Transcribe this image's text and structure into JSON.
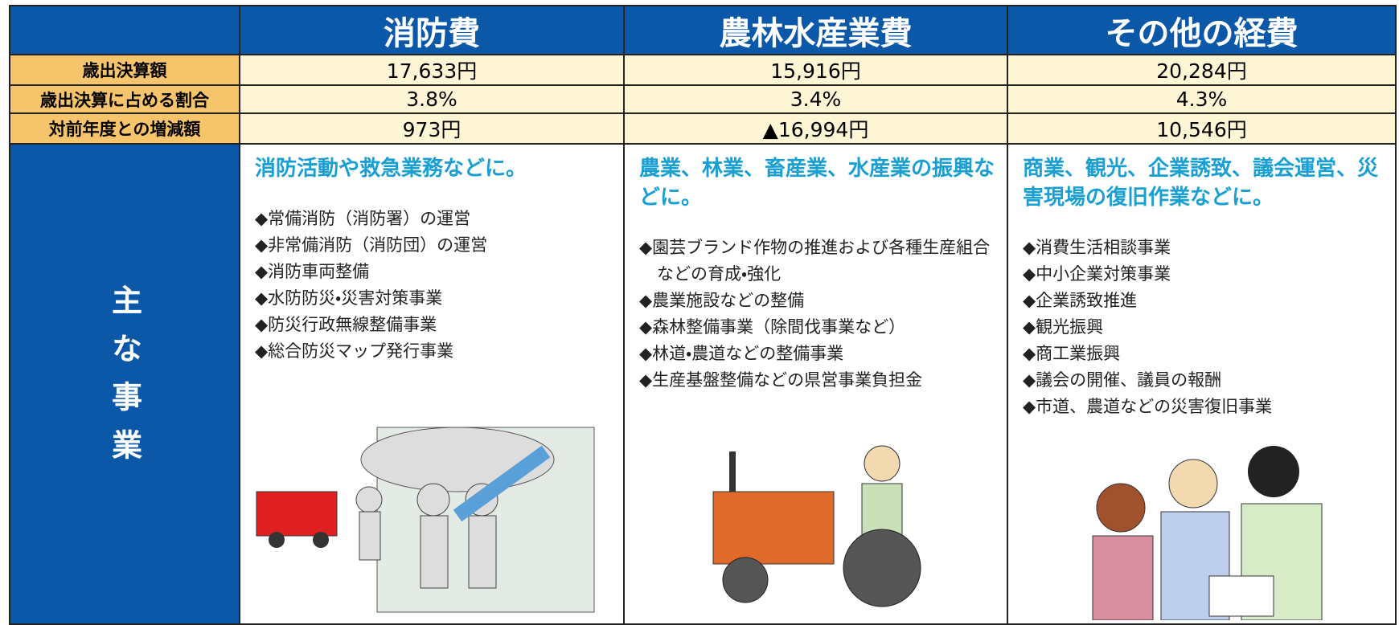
{
  "header": {
    "columns": [
      "消防費",
      "農林水産業費",
      "その他の経費"
    ]
  },
  "table": {
    "rows": [
      {
        "label": "歳出決算額",
        "values": [
          "17,633円",
          "15,916円",
          "20,284円"
        ]
      },
      {
        "label": "歳出決算に占める割合",
        "values": [
          "3.8%",
          "3.4%",
          "4.3%"
        ]
      },
      {
        "label": "対前年度との増減額",
        "values": [
          "973円",
          "▲16,994円",
          "10,546円"
        ]
      }
    ]
  },
  "main_projects": {
    "label": "主な事業",
    "columns": [
      {
        "headline": "消防活動や救急業務などに。",
        "items": [
          "◆常備消防（消防署）の運営",
          "◆非常備消防（消防団）の運営",
          "◆消防車両整備",
          "◆水防防災・災害対策事業",
          "◆防災行政無線整備事業",
          "◆総合防災マップ発行事業"
        ]
      },
      {
        "headline": "農業、林業、畜産業、水産業の振興などに。",
        "items": [
          "◆園芸ブランド作物の推進および各種生産組合などの育成・強化",
          "◆農業施設などの整備",
          "◆森林整備事業（除間伐事業など）",
          "◆林道・農道などの整備事業",
          "◆生産基盤整備などの県営事業負担金"
        ]
      },
      {
        "headline": "商業、観光、企業誘致、議会運営、災害現場の復旧作業などに。",
        "items": [
          "◆消費生活相談事業",
          "◆中小企業対策事業",
          "◆企業誘致推進",
          "◆観光振興",
          "◆商工業振興",
          "◆議会の開催、議員の報酬",
          "◆市道、農道などの災害復旧事業"
        ]
      }
    ]
  }
}
